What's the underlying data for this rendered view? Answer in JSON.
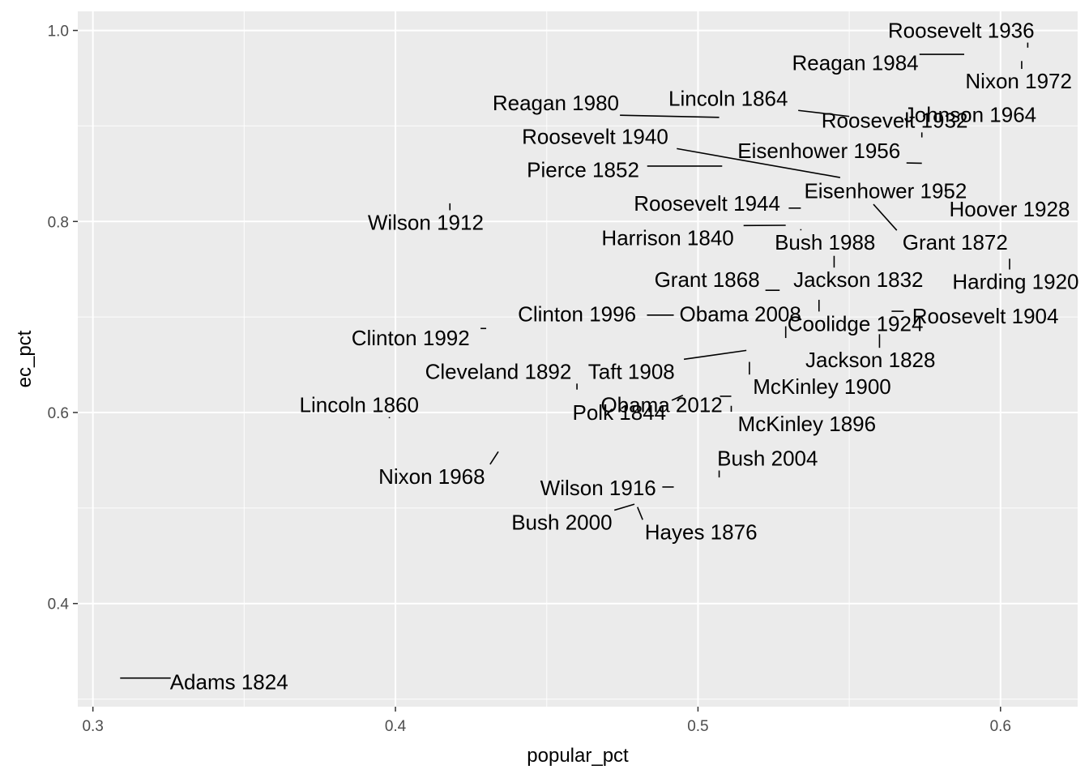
{
  "chart_data": {
    "type": "scatter",
    "title": "",
    "xlabel": "popular_pct",
    "ylabel": "ec_pct",
    "xlim": [
      0.295,
      0.6255
    ],
    "ylim": [
      0.292,
      1.02
    ],
    "x_ticks": [
      0.3,
      0.4,
      0.5,
      0.6
    ],
    "x_tick_labels": [
      "0.3",
      "0.4",
      "0.5",
      "0.6"
    ],
    "y_ticks": [
      0.4,
      0.6,
      0.8,
      1.0
    ],
    "y_tick_labels": [
      "0.4",
      "0.6",
      "0.8",
      "1.0"
    ],
    "grid": true,
    "legend": "none",
    "points": [
      {
        "label": "Roosevelt 1936",
        "x": 0.609,
        "y": 0.982,
        "tx": 0.587,
        "ty": 1.0
      },
      {
        "label": "Reagan 1984",
        "x": 0.588,
        "y": 0.975,
        "tx": 0.552,
        "ty": 0.966
      },
      {
        "label": "Nixon 1972",
        "x": 0.607,
        "y": 0.968,
        "tx": 0.606,
        "ty": 0.947
      },
      {
        "label": "Reagan 1980",
        "x": 0.507,
        "y": 0.909,
        "tx": 0.453,
        "ty": 0.924
      },
      {
        "label": "Lincoln 1864",
        "x": 0.55,
        "y": 0.91,
        "tx": 0.51,
        "ty": 0.929
      },
      {
        "label": "Roosevelt 1932",
        "x": 0.574,
        "y": 0.888,
        "tx": 0.565,
        "ty": 0.906
      },
      {
        "label": "Johnson 1964",
        "x": 0.611,
        "y": 0.903,
        "tx": 0.59,
        "ty": 0.912
      },
      {
        "label": "Roosevelt 1940",
        "x": 0.547,
        "y": 0.846,
        "tx": 0.466,
        "ty": 0.889
      },
      {
        "label": "Eisenhower 1956",
        "x": 0.574,
        "y": 0.861,
        "tx": 0.54,
        "ty": 0.874
      },
      {
        "label": "Pierce 1852",
        "x": 0.508,
        "y": 0.858,
        "tx": 0.462,
        "ty": 0.854
      },
      {
        "label": "Eisenhower 1952",
        "x": 0.554,
        "y": 0.832,
        "tx": 0.562,
        "ty": 0.832
      },
      {
        "label": "Hoover 1928",
        "x": 0.582,
        "y": 0.836,
        "tx": 0.603,
        "ty": 0.813
      },
      {
        "label": "Roosevelt 1944",
        "x": 0.534,
        "y": 0.814,
        "tx": 0.503,
        "ty": 0.819
      },
      {
        "label": "Wilson 1912",
        "x": 0.418,
        "y": 0.819,
        "tx": 0.41,
        "ty": 0.799
      },
      {
        "label": "Harrison 1840",
        "x": 0.529,
        "y": 0.796,
        "tx": 0.49,
        "ty": 0.783
      },
      {
        "label": "Bush 1988",
        "x": 0.534,
        "y": 0.792,
        "tx": 0.542,
        "ty": 0.778
      },
      {
        "label": "Grant 1872",
        "x": 0.558,
        "y": 0.818,
        "tx": 0.585,
        "ty": 0.778
      },
      {
        "label": "Grant 1868",
        "x": 0.527,
        "y": 0.728,
        "tx": 0.503,
        "ty": 0.739
      },
      {
        "label": "Jackson 1832",
        "x": 0.545,
        "y": 0.764,
        "tx": 0.553,
        "ty": 0.739
      },
      {
        "label": "Harding 1920",
        "x": 0.603,
        "y": 0.761,
        "tx": 0.605,
        "ty": 0.737
      },
      {
        "label": "Clinton 1996",
        "x": 0.492,
        "y": 0.702,
        "tx": 0.46,
        "ty": 0.703
      },
      {
        "label": "Obama 2008",
        "x": 0.529,
        "y": 0.678,
        "tx": 0.514,
        "ty": 0.703
      },
      {
        "label": "Coolidge 1924",
        "x": 0.54,
        "y": 0.718,
        "tx": 0.552,
        "ty": 0.693
      },
      {
        "label": "Roosevelt 1904",
        "x": 0.564,
        "y": 0.706,
        "tx": 0.595,
        "ty": 0.701
      },
      {
        "label": "Clinton 1992",
        "x": 0.43,
        "y": 0.688,
        "tx": 0.405,
        "ty": 0.678
      },
      {
        "label": "Taft 1908",
        "x": 0.516,
        "y": 0.665,
        "tx": 0.478,
        "ty": 0.643
      },
      {
        "label": "Jackson 1828",
        "x": 0.56,
        "y": 0.682,
        "tx": 0.557,
        "ty": 0.655
      },
      {
        "label": "Cleveland 1892",
        "x": 0.46,
        "y": 0.624,
        "tx": 0.434,
        "ty": 0.643
      },
      {
        "label": "Obama 2012",
        "x": 0.511,
        "y": 0.617,
        "tx": 0.488,
        "ty": 0.608
      },
      {
        "label": "McKinley 1900",
        "x": 0.517,
        "y": 0.653,
        "tx": 0.541,
        "ty": 0.627
      },
      {
        "label": "Lincoln 1860",
        "x": 0.398,
        "y": 0.594,
        "tx": 0.388,
        "ty": 0.608
      },
      {
        "label": "Polk 1844",
        "x": 0.495,
        "y": 0.618,
        "tx": 0.474,
        "ty": 0.6
      },
      {
        "label": "McKinley 1896",
        "x": 0.511,
        "y": 0.607,
        "tx": 0.536,
        "ty": 0.588
      },
      {
        "label": "Bush 2004",
        "x": 0.507,
        "y": 0.532,
        "tx": 0.523,
        "ty": 0.552
      },
      {
        "label": "Nixon 1968",
        "x": 0.434,
        "y": 0.559,
        "tx": 0.412,
        "ty": 0.533
      },
      {
        "label": "Wilson 1916",
        "x": 0.492,
        "y": 0.522,
        "tx": 0.467,
        "ty": 0.521
      },
      {
        "label": "Bush 2000",
        "x": 0.479,
        "y": 0.504,
        "tx": 0.455,
        "ty": 0.485
      },
      {
        "label": "Hayes 1876",
        "x": 0.48,
        "y": 0.501,
        "tx": 0.501,
        "ty": 0.475
      },
      {
        "label": "Adams 1824",
        "x": 0.309,
        "y": 0.322,
        "tx": 0.345,
        "ty": 0.318
      }
    ]
  }
}
